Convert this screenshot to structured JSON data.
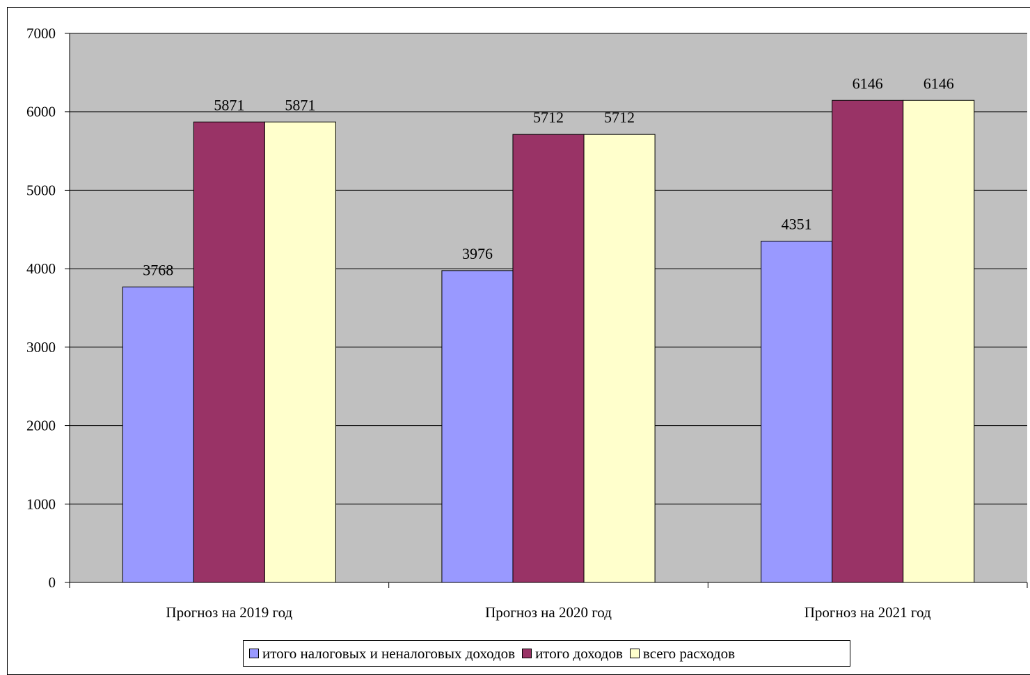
{
  "chart_data": {
    "type": "bar",
    "title": "",
    "xlabel": "",
    "ylabel": "",
    "categories": [
      "Прогноз на 2019 год",
      "Прогноз на 2020 год",
      "Прогноз на 2021 год"
    ],
    "series": [
      {
        "name": "итого  налоговых и неналоговых доходов",
        "values": [
          3768,
          3976,
          4351
        ],
        "color": "#9999FF"
      },
      {
        "name": "итого доходов",
        "values": [
          5871,
          5712,
          6146
        ],
        "color": "#993366"
      },
      {
        "name": "всего расходов",
        "values": [
          5871,
          5712,
          6146
        ],
        "color": "#FFFFCC"
      }
    ],
    "ylim": [
      0,
      7000
    ],
    "yticks": [
      0,
      1000,
      2000,
      3000,
      4000,
      5000,
      6000,
      7000
    ],
    "yticks_labels": [
      "0",
      "1000",
      "2000",
      "3000",
      "4000",
      "5000",
      "6000",
      "7000"
    ],
    "grid": true,
    "plot_background": "#C0C0C0",
    "legend": "bottom"
  }
}
